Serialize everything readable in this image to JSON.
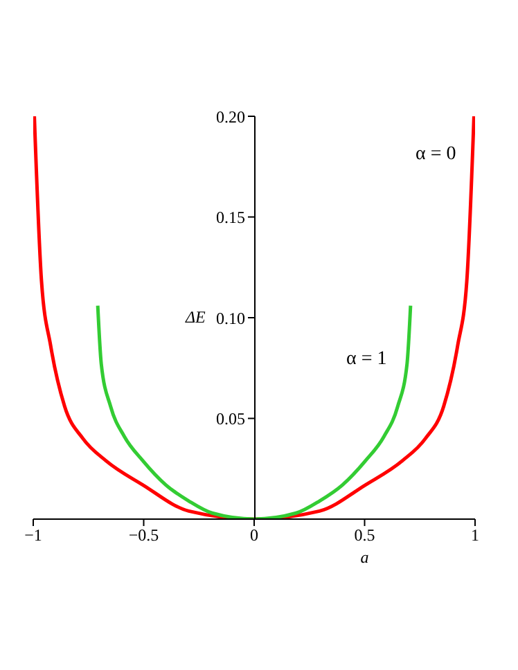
{
  "chart_data": {
    "type": "line",
    "xlabel": "a",
    "ylabel": "ΔE",
    "xlim": [
      -1,
      1
    ],
    "ylim": [
      0,
      0.2
    ],
    "xticks": [
      {
        "value": -1,
        "label": "−1"
      },
      {
        "value": -0.5,
        "label": "−0.5"
      },
      0,
      0.5,
      1
    ],
    "yticks": [
      0.05,
      {
        "value": 0.1,
        "label": "0.10"
      },
      0.15,
      {
        "value": 0.2,
        "label": "0.20"
      }
    ],
    "grid": false,
    "legend": false,
    "marker": "none",
    "line_style": "solid",
    "series": [
      {
        "name": "α = 0",
        "color": "#ff0000",
        "x": [
          -0.995,
          -0.9625,
          -0.921,
          -0.858,
          -0.775,
          -0.671,
          -0.504,
          -0.296,
          0,
          0.296,
          0.504,
          0.671,
          0.775,
          0.858,
          0.921,
          0.9625,
          0.995
        ],
        "values": [
          0.2,
          0.118,
          0.086,
          0.056,
          0.04,
          0.029,
          0.017,
          0.004,
          0,
          0.004,
          0.017,
          0.029,
          0.04,
          0.056,
          0.086,
          0.118,
          0.2
        ]
      },
      {
        "name": "α = 1",
        "color": "#33cc33",
        "x": [
          -0.708,
          -0.692,
          -0.65,
          -0.5875,
          -0.504,
          -0.4,
          -0.296,
          -0.19,
          0,
          0.19,
          0.296,
          0.4,
          0.504,
          0.5875,
          0.65,
          0.692,
          0.708
        ],
        "values": [
          0.106,
          0.077,
          0.056,
          0.041,
          0.029,
          0.017,
          0.009,
          0.003,
          0,
          0.003,
          0.009,
          0.017,
          0.029,
          0.041,
          0.056,
          0.077,
          0.106
        ]
      }
    ]
  }
}
